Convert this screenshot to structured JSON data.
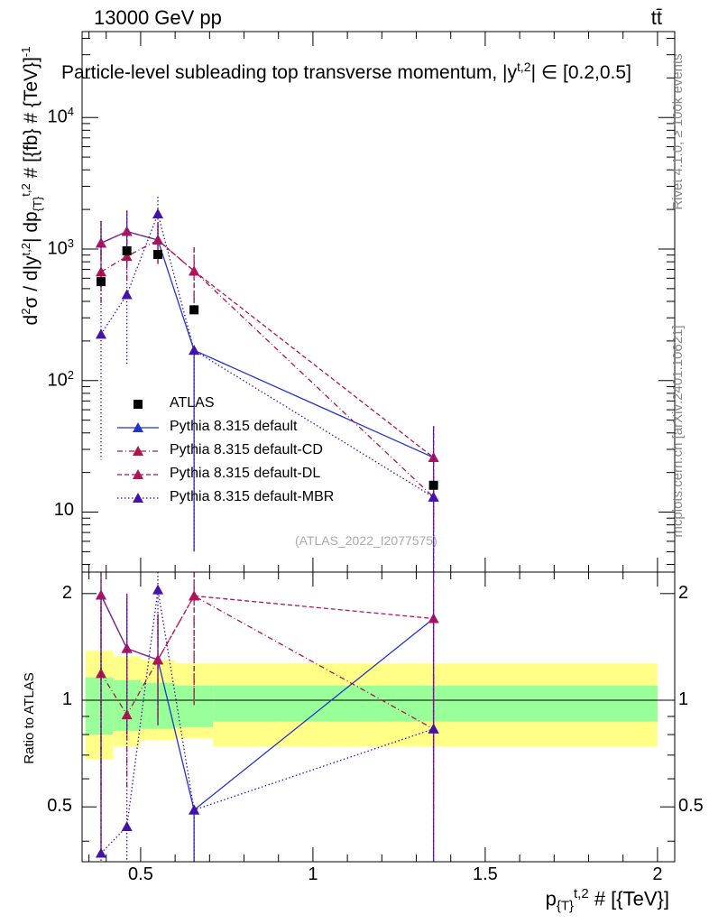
{
  "header": {
    "energy": "13000 GeV pp",
    "process": "tt̄"
  },
  "side_labels": {
    "rivet": "Rivet 4.1.0, ≥ 100k events",
    "source": "mcplots.cern.ch [arXiv:2401.10621]"
  },
  "colors": {
    "atlas": "#000000",
    "default": "#2233cc",
    "cd": "#b0134a",
    "dl": "#b0135e",
    "mbr": "#4411aa",
    "band_inner": "#99ff99",
    "band_outer": "#ffff88"
  },
  "chart_data": {
    "type": "line",
    "title": "Particle-level subleading top transverse momentum, |y^{t,2}| ∈ [0.2,0.5]",
    "title_parts": {
      "pre": "Particle-level subleading top transverse momentum, |y",
      "sup": "t,2",
      "post": "| ∈ [0.2,0.5]"
    },
    "watermark": "(ATLAS_2022_I2077575)",
    "xlabel": {
      "base": "p",
      "sub": "{T}",
      "sup": "t,2",
      "tail": " # [{TeV}]"
    },
    "ylabel_main": {
      "text": "d²σ / d|y^{t,2}| dp_{T}^{t,2} # [{fb} # {TeV}]^{-1}",
      "pre": "d",
      "sup1": "2",
      "mid": "σ / d|y",
      "sup2": "t,2",
      "mid2": "| dp",
      "sub": "{T}",
      "sup3": "t,2",
      "tail": " # [{fb} # {TeV}]",
      "sup4": "-1"
    },
    "ylabel_ratio": "Ratio to ATLAS",
    "xlim": [
      0.33,
      2.05
    ],
    "ylim_main": [
      3.5,
      45000
    ],
    "ylim_ratio": [
      0.35,
      2.3
    ],
    "x_ticks": [
      "0.5",
      "1",
      "1.5",
      "2"
    ],
    "y_ticks_main": [
      {
        "base": "10",
        "exp": ""
      },
      {
        "base": "10",
        "exp": "2"
      },
      {
        "base": "10",
        "exp": "3"
      },
      {
        "base": "10",
        "exp": "4"
      }
    ],
    "y_ticks_ratio": [
      "0.5",
      "1",
      "2"
    ],
    "x": [
      0.385,
      0.46,
      0.55,
      0.655,
      1.35
    ],
    "bin_edges": [
      0.34,
      0.42,
      0.5,
      0.6,
      0.71,
      2.0
    ],
    "atlas": [
      565,
      970,
      910,
      345,
      16
    ],
    "ratio_band": {
      "inner_lo": [
        0.8,
        0.82,
        0.83,
        0.84,
        0.87
      ],
      "inner_hi": [
        1.16,
        1.14,
        1.12,
        1.1,
        1.1
      ],
      "outer_lo": [
        0.68,
        0.74,
        0.77,
        0.78,
        0.74
      ],
      "outer_hi": [
        1.38,
        1.33,
        1.3,
        1.27,
        1.27
      ]
    },
    "series": [
      {
        "name": "Pythia 8.315 default",
        "style": "solid",
        "marker": "up",
        "values": [
          1110,
          1360,
          1170,
          170,
          26
        ],
        "err_lo": [
          300,
          600,
          400,
          165,
          24
        ],
        "err_hi": [
          520,
          600,
          400,
          0,
          19
        ],
        "ratio": [
          1.98,
          1.4,
          1.3,
          0.49,
          1.7
        ],
        "ratio_err_lo": [
          1.6,
          0.6,
          0.45,
          0.49,
          1.4
        ],
        "ratio_err_hi": [
          0.4,
          0.6,
          0.45,
          0,
          0.6
        ]
      },
      {
        "name": "Pythia 8.315 default-CD",
        "style": "dashdot",
        "marker": "up",
        "values": [
          670,
          880,
          1170,
          680,
          13
        ],
        "err_lo": [
          300,
          300,
          350,
          350,
          6
        ],
        "err_hi": [
          300,
          300,
          350,
          350,
          6
        ],
        "ratio": [
          1.19,
          0.91,
          1.3,
          1.97,
          0.83
        ],
        "ratio_err_lo": [
          0.66,
          0.35,
          0.4,
          1.0,
          0.35
        ],
        "ratio_err_hi": [
          0.66,
          0.35,
          0.4,
          1.0,
          0.35
        ]
      },
      {
        "name": "Pythia 8.315 default-DL",
        "style": "dashed",
        "marker": "up",
        "values": [
          1110,
          1360,
          1170,
          680,
          26
        ],
        "err_lo": [
          300,
          600,
          400,
          350,
          24
        ],
        "err_hi": [
          520,
          600,
          400,
          350,
          19
        ],
        "ratio": [
          1.98,
          1.4,
          1.3,
          1.97,
          1.7
        ],
        "ratio_err_lo": [
          1.6,
          0.6,
          0.45,
          1.0,
          1.4
        ],
        "ratio_err_hi": [
          0.4,
          0.6,
          0.45,
          1.0,
          0.6
        ]
      },
      {
        "name": "Pythia 8.315 default-MBR",
        "style": "dotted",
        "marker": "up",
        "values": [
          225,
          450,
          1850,
          170,
          13
        ],
        "err_lo": [
          200,
          320,
          700,
          165,
          12
        ],
        "err_hi": [
          1410,
          1500,
          650,
          0,
          32
        ],
        "ratio": [
          0.37,
          0.44,
          2.05,
          0.49,
          0.83
        ],
        "ratio_err_lo": [
          0.37,
          0.44,
          0.6,
          0.49,
          0.83
        ],
        "ratio_err_hi": [
          1.6,
          1.5,
          0.6,
          0,
          1.2
        ]
      }
    ]
  }
}
